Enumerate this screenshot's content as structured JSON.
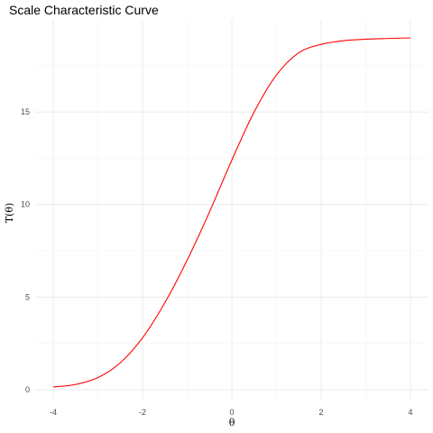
{
  "chart_data": {
    "type": "line",
    "title": "Scale Characteristic Curve",
    "xlabel": "θ",
    "ylabel": "T(θ)",
    "xlim": [
      -4,
      4
    ],
    "ylim": [
      0,
      19
    ],
    "x_ticks": [
      -4,
      -2,
      0,
      2,
      4
    ],
    "y_ticks": [
      0,
      5,
      10,
      15
    ],
    "grid": true,
    "series": [
      {
        "color": "#ff0000",
        "x": [
          -4.0,
          -3.5,
          -3.0,
          -2.5,
          -2.0,
          -1.5,
          -1.0,
          -0.5,
          0.0,
          0.5,
          1.0,
          1.5,
          2.0,
          2.5,
          3.0,
          3.5,
          4.0
        ],
        "y": [
          0.15,
          0.28,
          0.65,
          1.45,
          2.8,
          4.7,
          7.0,
          9.6,
          12.4,
          15.0,
          17.0,
          18.2,
          18.65,
          18.85,
          18.93,
          18.97,
          19.0
        ]
      }
    ]
  }
}
